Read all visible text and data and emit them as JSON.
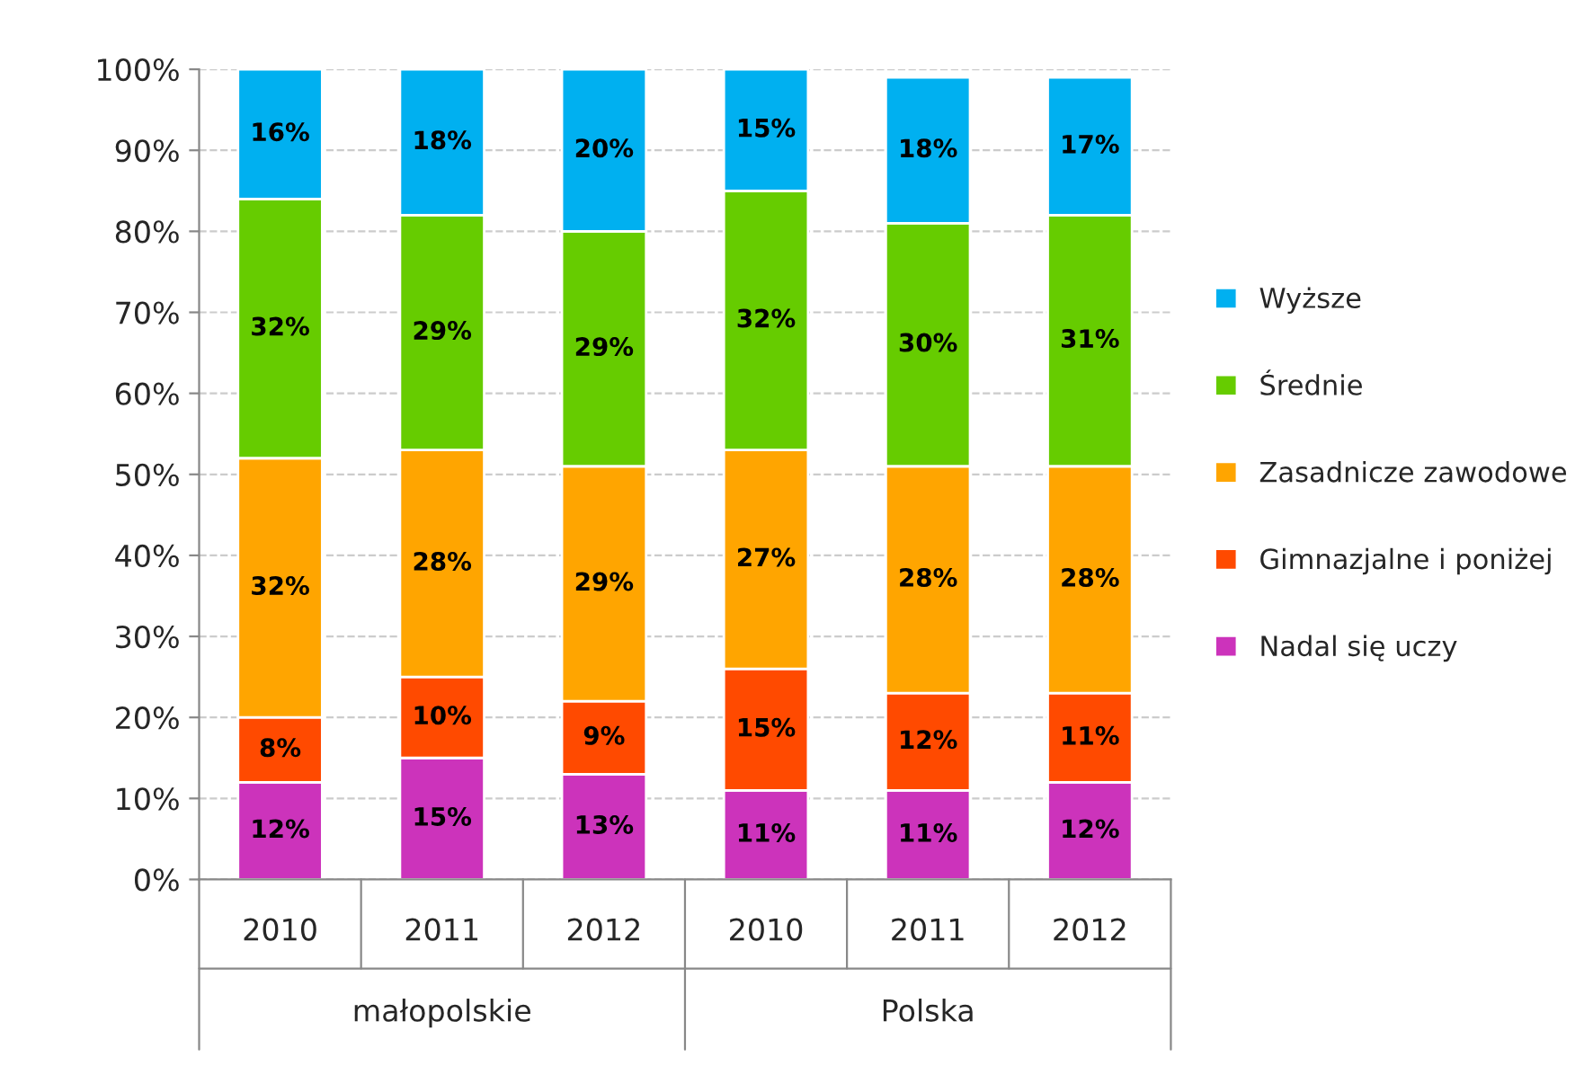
{
  "chart_data": {
    "type": "bar",
    "stacked": true,
    "legend": "right",
    "grid": "y",
    "categories": [
      "2010",
      "2011",
      "2012",
      "2010",
      "2011",
      "2012"
    ],
    "annotations": [
      "małopolskie",
      "Polska"
    ],
    "ylim": [
      0,
      100
    ],
    "yticks": [
      {
        "value": 0,
        "label": "0%"
      },
      {
        "value": 10,
        "label": "10%"
      },
      {
        "value": 20,
        "label": "20%"
      },
      {
        "value": 30,
        "label": "30%"
      },
      {
        "value": 40,
        "label": "40%"
      },
      {
        "value": 50,
        "label": "50%"
      },
      {
        "value": 60,
        "label": "60%"
      },
      {
        "value": 70,
        "label": "70%"
      },
      {
        "value": 80,
        "label": "80%"
      },
      {
        "value": 90,
        "label": "90%"
      },
      {
        "value": 100,
        "label": "100%"
      }
    ],
    "series": [
      {
        "name": "Nadal się uczy",
        "color": "#cc33bb",
        "values": [
          12,
          15,
          13,
          11,
          11,
          12
        ],
        "value_labels": [
          "12%",
          "15%",
          "13%",
          "11%",
          "11%",
          "12%"
        ]
      },
      {
        "name": "Gimnazjalne i poniżej",
        "color": "#ff4a00",
        "values": [
          8,
          10,
          9,
          15,
          12,
          11
        ],
        "value_labels": [
          "8%",
          "10%",
          "9%",
          "15%",
          "12%",
          "11%"
        ]
      },
      {
        "name": "Zasadnicze zawodowe",
        "color": "#ffa500",
        "values": [
          32,
          28,
          29,
          27,
          28,
          28
        ],
        "value_labels": [
          "32%",
          "28%",
          "29%",
          "27%",
          "28%",
          "28%"
        ]
      },
      {
        "name": "Średnie",
        "color": "#66cc00",
        "values": [
          32,
          29,
          29,
          32,
          30,
          31
        ],
        "value_labels": [
          "32%",
          "29%",
          "29%",
          "32%",
          "30%",
          "31%"
        ]
      },
      {
        "name": "Wyższe",
        "color": "#00b0f0",
        "values": [
          16,
          18,
          20,
          15,
          18,
          17
        ],
        "value_labels": [
          "16%",
          "18%",
          "20%",
          "15%",
          "18%",
          "17%"
        ]
      }
    ]
  }
}
